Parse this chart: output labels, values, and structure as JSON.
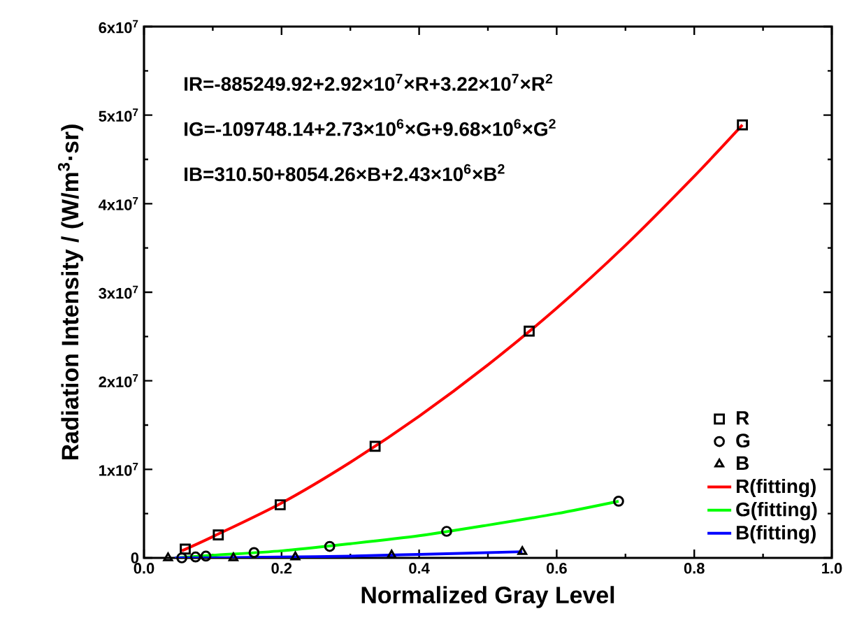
{
  "chart_data": {
    "type": "scatter",
    "xlabel": "Normalized Gray Level",
    "ylabel": "Radiation Intensity  / (W/m$^{3}$·sr)",
    "annotations": [
      "IR=-885249.92+2.92×10$^{7}$×R+3.22×10$^{7}$×R$^{2}$",
      "IG=-109748.14+2.73×10$^{6}$×G+9.68×10$^{6}$×G$^{2}$",
      "IB=310.50+8054.26×B+2.43×10$^{6}$×B$^{2}$"
    ],
    "xlim": [
      0,
      1
    ],
    "ylim": [
      0,
      60000000
    ],
    "xticks": [
      {
        "value": 0,
        "label": "0.0"
      },
      0.2,
      0.4,
      0.6,
      0.8,
      {
        "value": 1,
        "label": "1.0"
      }
    ],
    "yticks": [
      0,
      {
        "value": 10000000,
        "label": "1x10$^{7}$"
      },
      {
        "value": 20000000,
        "label": "2x10$^{7}$"
      },
      {
        "value": 30000000,
        "label": "3x10$^{7}$"
      },
      {
        "value": 40000000,
        "label": "4x10$^{7}$"
      },
      {
        "value": 50000000,
        "label": "5x10$^{7}$"
      },
      {
        "value": 60000000,
        "label": "6x10$^{7}$"
      }
    ],
    "grid": false,
    "legend": "bottom right",
    "series": [
      {
        "name": "R",
        "type": "scatter",
        "marker": "square",
        "color": "#000000",
        "x": [
          0.06,
          0.108,
          0.198,
          0.336,
          0.56,
          0.87
        ],
        "values": [
          1000000,
          2600000,
          6000000,
          12600000,
          25600000,
          48900000
        ]
      },
      {
        "name": "G",
        "type": "scatter",
        "marker": "circle",
        "color": "#000000",
        "x": [
          0.055,
          0.075,
          0.09,
          0.16,
          0.27,
          0.44,
          0.69
        ],
        "values": [
          0,
          100000,
          200000,
          600000,
          1300000,
          3000000,
          6400000
        ]
      },
      {
        "name": "B",
        "type": "scatter",
        "marker": "triangle",
        "color": "#000000",
        "x": [
          0.035,
          0.13,
          0.22,
          0.36,
          0.55
        ],
        "values": [
          0,
          0,
          100000,
          300000,
          700000
        ]
      },
      {
        "name": "R(fitting)",
        "type": "line",
        "color": "#ff0000",
        "x": [
          0.055,
          0.1,
          0.2,
          0.3,
          0.4,
          0.5,
          0.6,
          0.7,
          0.8,
          0.87
        ],
        "values": [
          800000,
          2400000,
          6200000,
          10800000,
          16000000,
          21800000,
          28200000,
          35300000,
          43100000,
          48900000
        ]
      },
      {
        "name": "G(fitting)",
        "type": "line",
        "color": "#00ff00",
        "x": [
          0.045,
          0.1,
          0.2,
          0.3,
          0.4,
          0.5,
          0.6,
          0.69
        ],
        "values": [
          0,
          300000,
          800000,
          1600000,
          2500000,
          3700000,
          5000000,
          6400000
        ]
      },
      {
        "name": "B(fitting)",
        "type": "line",
        "color": "#0000ff",
        "x": [
          0.045,
          0.1,
          0.2,
          0.3,
          0.4,
          0.55
        ],
        "values": [
          0,
          0,
          100000,
          200000,
          400000,
          700000
        ]
      }
    ]
  }
}
